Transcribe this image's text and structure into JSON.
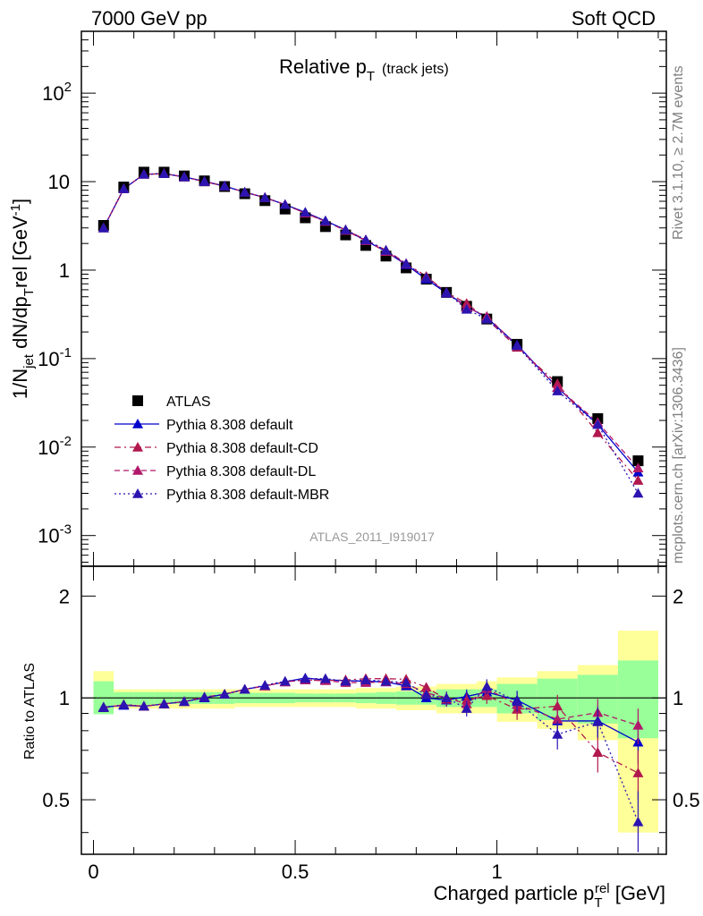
{
  "header": {
    "left": "7000 GeV pp",
    "right": "Soft QCD"
  },
  "side_labels": {
    "rivet": "Rivet 3.1.10, ≥ 2.7M events",
    "mcplots": "mcplots.cern.ch [arXiv:1306.3436]"
  },
  "chart_data": [
    {
      "type": "scatter",
      "title_main": "Relative p",
      "title_sub": "T",
      "title_note": "(track jets)",
      "watermark": "ATLAS_2011_I919017",
      "ylabel": "1/N_jet dN/dp_T^rel [GeV^-1]",
      "ylabel_parts": {
        "a": "1/N",
        "b": "jet",
        "c": " dN/dp",
        "d": "T",
        "e": "rel [GeV",
        "f": "-1",
        "g": "]"
      },
      "yscale": "log",
      "ylim": [
        0.00045,
        500
      ],
      "xlim": [
        -0.03,
        1.42
      ],
      "yticks": [
        {
          "v": 0.001,
          "base": "10",
          "exp": "-3"
        },
        {
          "v": 0.01,
          "base": "10",
          "exp": "-2"
        },
        {
          "v": 0.1,
          "base": "10",
          "exp": "-1"
        },
        {
          "v": 1,
          "base": "1",
          "exp": ""
        },
        {
          "v": 10,
          "base": "10",
          "exp": ""
        },
        {
          "v": 100,
          "base": "10",
          "exp": "2"
        }
      ],
      "x": [
        0.025,
        0.075,
        0.125,
        0.175,
        0.225,
        0.275,
        0.325,
        0.375,
        0.425,
        0.475,
        0.525,
        0.575,
        0.625,
        0.675,
        0.725,
        0.775,
        0.825,
        0.875,
        0.925,
        0.975,
        1.05,
        1.15,
        1.25,
        1.35
      ],
      "series": [
        {
          "name": "ATLAS",
          "color": "#000000",
          "marker": "square",
          "values": [
            3.2,
            8.7,
            12.8,
            12.8,
            11.6,
            10.2,
            8.8,
            7.3,
            6.1,
            4.9,
            3.9,
            3.1,
            2.5,
            1.9,
            1.44,
            1.06,
            0.79,
            0.56,
            0.39,
            0.28,
            0.145,
            0.055,
            0.021,
            0.007
          ]
        },
        {
          "name": "Pythia 8.308 default",
          "color": "#0000cc",
          "marker": "triangle",
          "dash": "",
          "values": [
            3.0,
            8.3,
            12.1,
            12.3,
            11.3,
            10.1,
            8.9,
            7.6,
            6.6,
            5.5,
            4.5,
            3.6,
            2.85,
            2.15,
            1.62,
            1.15,
            0.79,
            0.55,
            0.39,
            0.29,
            0.143,
            0.047,
            0.018,
            0.0052
          ]
        },
        {
          "name": "Pythia 8.308 default-CD",
          "color": "#b0184e",
          "marker": "triangle",
          "dash": "7,4,2,4",
          "values": [
            3.0,
            8.3,
            12.1,
            12.3,
            11.3,
            10.0,
            8.9,
            7.6,
            6.6,
            5.5,
            4.4,
            3.55,
            2.85,
            2.2,
            1.68,
            1.19,
            0.85,
            0.56,
            0.42,
            0.28,
            0.134,
            0.052,
            0.0145,
            0.0042
          ]
        },
        {
          "name": "Pythia 8.308 default-DL",
          "color": "#b0186a",
          "marker": "triangle",
          "dash": "6,4",
          "values": [
            3.0,
            8.3,
            12.1,
            12.3,
            11.3,
            10.0,
            8.9,
            7.6,
            6.6,
            5.5,
            4.4,
            3.55,
            2.8,
            2.15,
            1.62,
            1.17,
            0.82,
            0.56,
            0.38,
            0.3,
            0.14,
            0.047,
            0.019,
            0.0058
          ]
        },
        {
          "name": "Pythia 8.308 default-MBR",
          "color": "#2b14b0",
          "marker": "triangle",
          "dash": "2,3",
          "values": [
            3.0,
            8.3,
            12.1,
            12.3,
            11.3,
            10.0,
            8.9,
            7.6,
            6.6,
            5.5,
            4.5,
            3.6,
            2.85,
            2.2,
            1.67,
            1.18,
            0.82,
            0.56,
            0.36,
            0.28,
            0.14,
            0.043,
            0.018,
            0.003
          ]
        }
      ]
    },
    {
      "type": "scatter",
      "ylabel": "Ratio to ATLAS",
      "xlabel": "Charged particle p_T^rel [GeV]",
      "xlabel_parts": {
        "a": "Charged particle p",
        "b": "T",
        "c": "rel",
        "d": " [GeV]"
      },
      "yscale": "log",
      "ylim": [
        0.345,
        2.45
      ],
      "xlim": [
        -0.03,
        1.42
      ],
      "xticks": [
        {
          "v": 0,
          "label": "0"
        },
        {
          "v": 0.5,
          "label": "0.5"
        },
        {
          "v": 1,
          "label": "1"
        }
      ],
      "yticks": [
        {
          "v": 0.5,
          "label": "0.5"
        },
        {
          "v": 1,
          "label": "1"
        },
        {
          "v": 2,
          "label": "2"
        }
      ],
      "x": [
        0.025,
        0.075,
        0.125,
        0.175,
        0.225,
        0.275,
        0.325,
        0.375,
        0.425,
        0.475,
        0.525,
        0.575,
        0.625,
        0.675,
        0.725,
        0.775,
        0.825,
        0.875,
        0.925,
        0.975,
        1.05,
        1.15,
        1.25,
        1.35
      ],
      "bin_edges": [
        0,
        0.05,
        0.1,
        0.15,
        0.2,
        0.25,
        0.3,
        0.35,
        0.4,
        0.45,
        0.5,
        0.55,
        0.6,
        0.65,
        0.7,
        0.75,
        0.8,
        0.85,
        0.9,
        0.95,
        1.0,
        1.1,
        1.2,
        1.3,
        1.4
      ],
      "band_inner": [
        [
          0.895,
          1.12
        ],
        [
          0.955,
          1.04
        ],
        [
          0.955,
          1.04
        ],
        [
          0.96,
          1.04
        ],
        [
          0.96,
          1.04
        ],
        [
          0.96,
          1.04
        ],
        [
          0.96,
          1.04
        ],
        [
          0.965,
          1.035
        ],
        [
          0.965,
          1.035
        ],
        [
          0.965,
          1.035
        ],
        [
          0.97,
          1.03
        ],
        [
          0.97,
          1.03
        ],
        [
          0.97,
          1.03
        ],
        [
          0.965,
          1.035
        ],
        [
          0.96,
          1.04
        ],
        [
          0.955,
          1.045
        ],
        [
          0.955,
          1.045
        ],
        [
          0.94,
          1.06
        ],
        [
          0.94,
          1.06
        ],
        [
          0.94,
          1.06
        ],
        [
          0.9,
          1.1
        ],
        [
          0.86,
          1.14
        ],
        [
          0.84,
          1.17
        ],
        [
          0.76,
          1.29
        ]
      ],
      "band_outer": [
        [
          0.895,
          1.2
        ],
        [
          0.93,
          1.06
        ],
        [
          0.93,
          1.06
        ],
        [
          0.93,
          1.06
        ],
        [
          0.93,
          1.06
        ],
        [
          0.93,
          1.06
        ],
        [
          0.93,
          1.06
        ],
        [
          0.94,
          1.06
        ],
        [
          0.94,
          1.06
        ],
        [
          0.94,
          1.06
        ],
        [
          0.94,
          1.06
        ],
        [
          0.94,
          1.06
        ],
        [
          0.94,
          1.06
        ],
        [
          0.93,
          1.07
        ],
        [
          0.93,
          1.07
        ],
        [
          0.92,
          1.08
        ],
        [
          0.92,
          1.08
        ],
        [
          0.9,
          1.1
        ],
        [
          0.9,
          1.1
        ],
        [
          0.9,
          1.12
        ],
        [
          0.85,
          1.15
        ],
        [
          0.81,
          1.2
        ],
        [
          0.75,
          1.25
        ],
        [
          0.4,
          1.58
        ]
      ],
      "series": [
        {
          "name": "Pythia 8.308 default",
          "color": "#0000cc",
          "dash": "",
          "values": [
            0.94,
            0.95,
            0.945,
            0.96,
            0.975,
            1.0,
            1.025,
            1.06,
            1.085,
            1.115,
            1.145,
            1.13,
            1.125,
            1.12,
            1.115,
            1.085,
            1.0,
            0.985,
            1.01,
            1.04,
            0.985,
            0.855,
            0.855,
            0.74
          ]
        },
        {
          "name": "Pythia 8.308 default-CD",
          "color": "#b0184e",
          "dash": "7,4,2,4",
          "values": [
            0.935,
            0.955,
            0.945,
            0.96,
            0.975,
            1.005,
            1.025,
            1.06,
            1.085,
            1.115,
            1.13,
            1.125,
            1.13,
            1.14,
            1.14,
            1.135,
            1.075,
            0.99,
            0.985,
            1.015,
            0.925,
            0.945,
            0.69,
            0.6
          ]
        },
        {
          "name": "Pythia 8.308 default-DL",
          "color": "#b0186a",
          "dash": "6,4",
          "values": [
            0.935,
            0.955,
            0.945,
            0.96,
            0.975,
            1.005,
            1.025,
            1.06,
            1.085,
            1.115,
            1.13,
            1.125,
            1.11,
            1.11,
            1.115,
            1.1,
            1.035,
            1.0,
            0.96,
            1.065,
            0.955,
            0.865,
            0.905,
            0.83
          ]
        },
        {
          "name": "Pythia 8.308 default-MBR",
          "color": "#2b14b0",
          "dash": "2,3",
          "values": [
            0.935,
            0.955,
            0.945,
            0.96,
            0.975,
            1.005,
            1.025,
            1.06,
            1.09,
            1.12,
            1.14,
            1.14,
            1.12,
            1.13,
            1.12,
            1.11,
            1.02,
            1.0,
            0.93,
            1.08,
            0.975,
            0.78,
            0.85,
            0.43
          ]
        }
      ]
    }
  ]
}
